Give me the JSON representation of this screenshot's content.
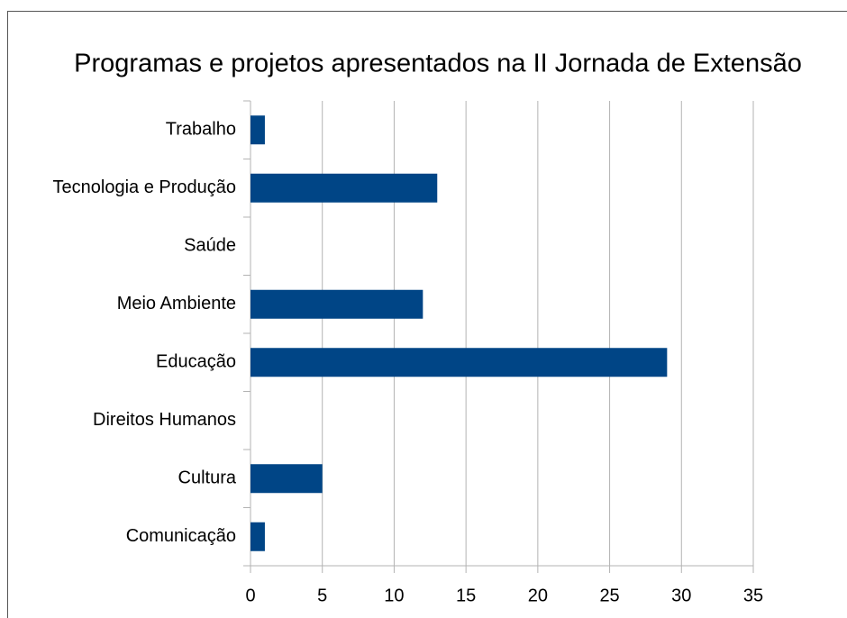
{
  "chart_data": {
    "type": "hbar",
    "title": "Programas e projetos apresentados na II Jornada de Extensão",
    "categories": [
      "Trabalho",
      "Tecnologia e Produção",
      "Saúde",
      "Meio Ambiente",
      "Educação",
      "Direitos Humanos",
      "Cultura",
      "Comunicação"
    ],
    "values": [
      1,
      13,
      0,
      12,
      29,
      0,
      5,
      1
    ],
    "color": "#004586",
    "xlim": [
      0,
      35
    ],
    "xticks": [
      0,
      5,
      10,
      15,
      20,
      25,
      30,
      35
    ],
    "grid": true
  }
}
